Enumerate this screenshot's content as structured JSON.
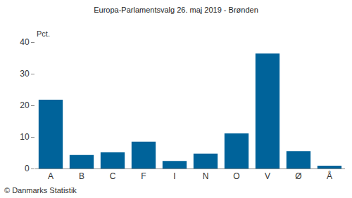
{
  "chart_data": {
    "type": "bar",
    "title": "Europa-Parlamentsvalg 26. maj 2019 - Brønden",
    "ylabel": "Pct.",
    "annotations": [
      "© Danmarks Statistik"
    ],
    "categories": [
      "A",
      "B",
      "C",
      "F",
      "I",
      "N",
      "O",
      "V",
      "Ø",
      "Å"
    ],
    "values": [
      21.8,
      4.3,
      5.1,
      8.5,
      2.4,
      4.7,
      11.1,
      36.4,
      5.5,
      0.9
    ],
    "color": "#00639a",
    "ylim": [
      0,
      40
    ],
    "yticks": [
      0,
      10,
      20,
      30,
      40
    ],
    "grid": false
  }
}
